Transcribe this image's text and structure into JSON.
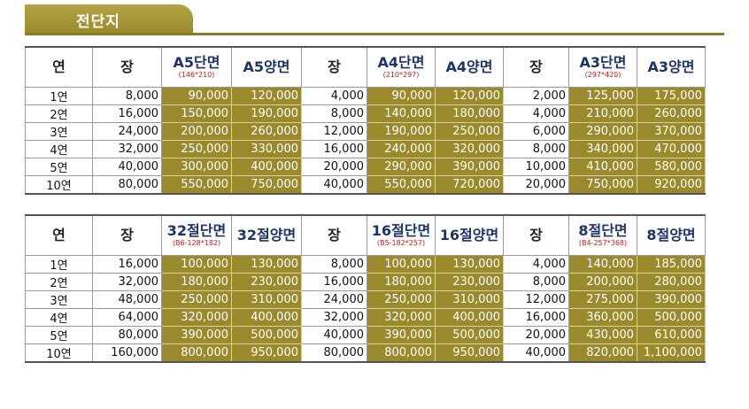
{
  "title": "전단지",
  "tables": [
    {
      "headers": [
        "연",
        "장",
        "A5단면",
        "A5양면",
        "장",
        "A4단면",
        "A4양면",
        "장",
        "A3단면",
        "A3양면"
      ],
      "subs": [
        "",
        "",
        "(146*210)",
        "",
        "",
        "(210*297)",
        "",
        "",
        "(297*420)",
        ""
      ],
      "rows": [
        [
          "1연",
          "8,000",
          "90,000",
          "120,000",
          "4,000",
          "90,000",
          "120,000",
          "2,000",
          "125,000",
          "175,000"
        ],
        [
          "2연",
          "16,000",
          "150,000",
          "190,000",
          "8,000",
          "140,000",
          "180,000",
          "4,000",
          "210,000",
          "260,000"
        ],
        [
          "3연",
          "24,000",
          "200,000",
          "260,000",
          "12,000",
          "190,000",
          "250,000",
          "6,000",
          "290,000",
          "370,000"
        ],
        [
          "4연",
          "32,000",
          "250,000",
          "330,000",
          "16,000",
          "240,000",
          "320,000",
          "8,000",
          "340,000",
          "470,000"
        ],
        [
          "5연",
          "40,000",
          "300,000",
          "400,000",
          "20,000",
          "290,000",
          "390,000",
          "10,000",
          "410,000",
          "580,000"
        ],
        [
          "10연",
          "80,000",
          "550,000",
          "750,000",
          "40,000",
          "550,000",
          "720,000",
          "20,000",
          "750,000",
          "920,000"
        ]
      ]
    },
    {
      "headers": [
        "연",
        "장",
        "32절단면",
        "32절양면",
        "장",
        "16절단면",
        "16절양면",
        "장",
        "8절단면",
        "8절양면"
      ],
      "subs": [
        "",
        "",
        "(B6-128*182)",
        "",
        "",
        "(B5-182*257)",
        "",
        "",
        "(B4-257*368)",
        ""
      ],
      "rows": [
        [
          "1연",
          "16,000",
          "100,000",
          "130,000",
          "8,000",
          "100,000",
          "130,000",
          "4,000",
          "140,000",
          "185,000"
        ],
        [
          "2연",
          "32,000",
          "180,000",
          "230,000",
          "16,000",
          "180,000",
          "230,000",
          "8,000",
          "200,000",
          "280,000"
        ],
        [
          "3연",
          "48,000",
          "250,000",
          "310,000",
          "24,000",
          "250,000",
          "310,000",
          "12,000",
          "275,000",
          "390,000"
        ],
        [
          "4연",
          "64,000",
          "320,000",
          "400,000",
          "32,000",
          "320,000",
          "400,000",
          "16,000",
          "360,000",
          "500,000"
        ],
        [
          "5연",
          "80,000",
          "390,000",
          "500,000",
          "40,000",
          "390,000",
          "500,000",
          "20,000",
          "430,000",
          "610,000"
        ],
        [
          "10연",
          "160,000",
          "800,000",
          "950,000",
          "80,000",
          "800,000",
          "950,000",
          "40,000",
          "820,000",
          "1,100,000"
        ]
      ]
    }
  ],
  "colors": {
    "gold": "#9a8a2b",
    "header_blue": "#1e3466",
    "sub_red": "#d11111"
  }
}
